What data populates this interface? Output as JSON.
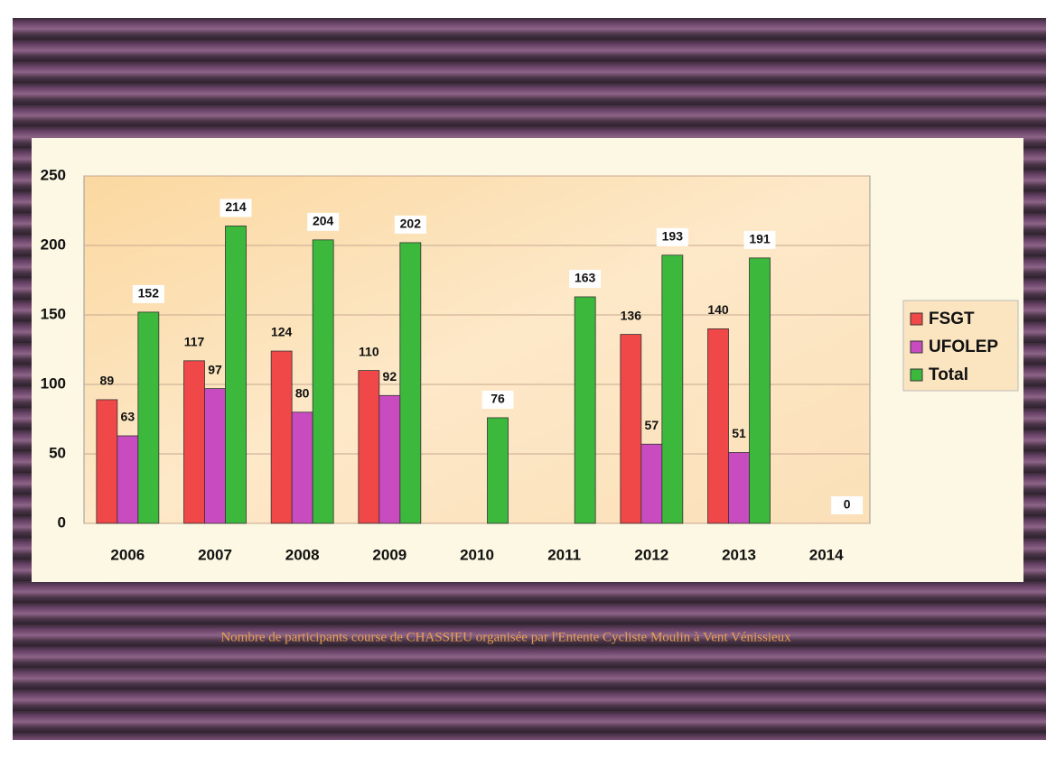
{
  "chart_data": {
    "type": "bar",
    "categories": [
      "2006",
      "2007",
      "2008",
      "2009",
      "2010",
      "2011",
      "2012",
      "2013",
      "2014"
    ],
    "series": [
      {
        "name": "FSGT",
        "color": "#f04848",
        "values": [
          89,
          117,
          124,
          110,
          null,
          null,
          136,
          140,
          null
        ]
      },
      {
        "name": "UFOLEP",
        "color": "#c84cc0",
        "values": [
          63,
          97,
          80,
          92,
          null,
          null,
          57,
          51,
          null
        ]
      },
      {
        "name": "Total",
        "color": "#3cb83c",
        "values": [
          152,
          214,
          204,
          202,
          76,
          163,
          193,
          191,
          0
        ]
      }
    ],
    "ylim": [
      0,
      250
    ],
    "yticks": [
      0,
      50,
      100,
      150,
      200,
      250
    ],
    "grid": true,
    "legend": "right",
    "caption": "Nombre de participants course de CHASSIEU organisée par l'Entente Cycliste Moulin à Vent Vénissieux"
  }
}
